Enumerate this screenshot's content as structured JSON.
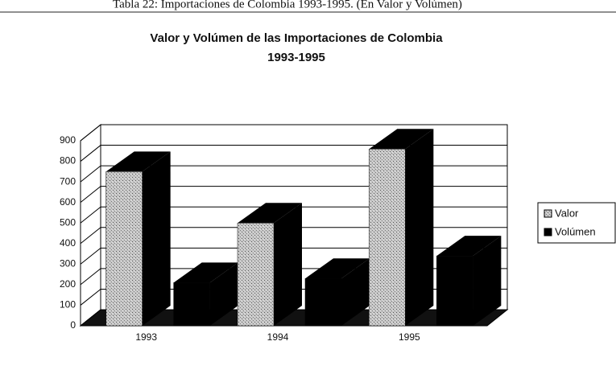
{
  "caption": "Tabla 22: Importaciones de Colombia 1993-1995. (En Valor y Volúmen)",
  "chart_data": {
    "type": "bar3d",
    "title": [
      "Valor y Volúmen de las Importaciones de Colombia",
      "1993-1995"
    ],
    "categories": [
      "1993",
      "1994",
      "1995"
    ],
    "series": [
      {
        "name": "Valor",
        "color": "#b4b4b4",
        "values": [
          750,
          500,
          860
        ]
      },
      {
        "name": "Volúmen",
        "color": "#000000",
        "values": [
          210,
          230,
          340
        ]
      }
    ],
    "ylim": [
      0,
      900
    ],
    "yticks": [
      0,
      100,
      200,
      300,
      400,
      500,
      600,
      700,
      800,
      900
    ],
    "grid": true,
    "legend": "right"
  }
}
